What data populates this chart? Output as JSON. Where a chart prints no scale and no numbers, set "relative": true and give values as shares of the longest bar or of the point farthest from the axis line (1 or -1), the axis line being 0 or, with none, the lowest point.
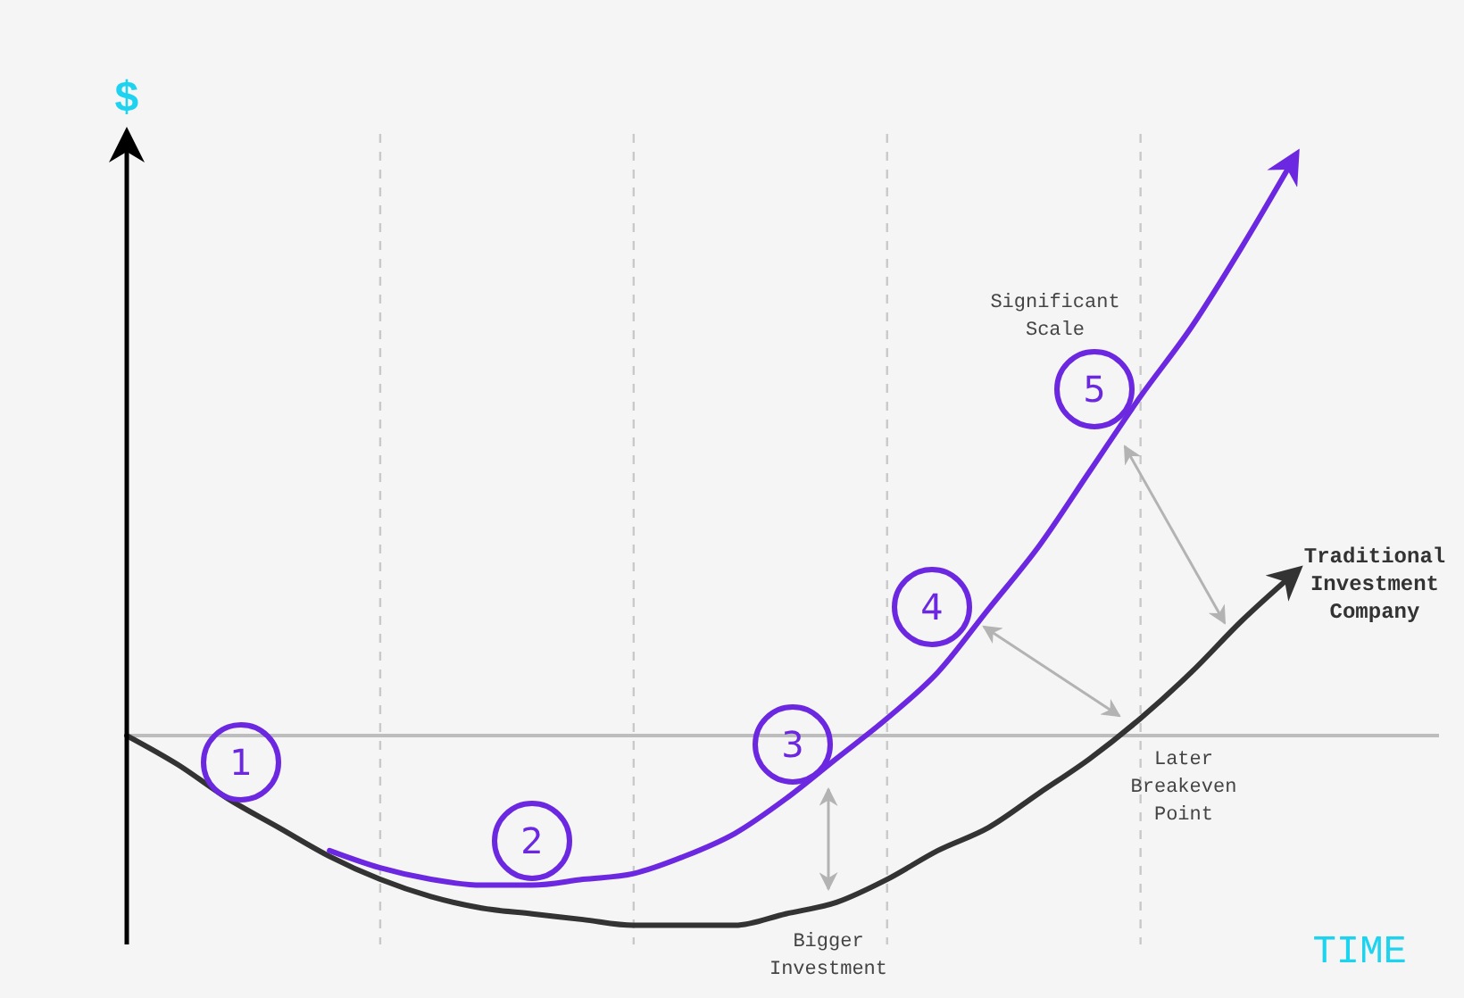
{
  "chart_data": {
    "type": "line",
    "relative": true,
    "xlabel": "TIME",
    "ylabel": "$",
    "categories": [
      null,
      null,
      null,
      null,
      null,
      null,
      null,
      null,
      null,
      null,
      null,
      null,
      null,
      null,
      null,
      null,
      null,
      null,
      null,
      null,
      null,
      null,
      null,
      null
    ],
    "grid": "x",
    "marker": "none",
    "line_style": "solid",
    "series": [
      {
        "name": "Traditional Investment Company",
        "color": "#333333",
        "values": [
          0,
          -0.05,
          -0.11,
          -0.16,
          -0.21,
          -0.25,
          -0.28,
          -0.3,
          -0.31,
          -0.32,
          -0.33,
          -0.33,
          -0.33,
          -0.31,
          -0.29,
          -0.25,
          -0.2,
          -0.16,
          -0.1,
          -0.04,
          0.03,
          0.11,
          0.2,
          0.28
        ]
      },
      {
        "color": "#6b28e0",
        "values": [
          null,
          null,
          null,
          null,
          -0.2,
          -0.23,
          -0.25,
          -0.26,
          -0.26,
          -0.25,
          -0.24,
          -0.21,
          -0.17,
          -0.11,
          -0.04,
          0.03,
          0.11,
          0.22,
          0.33,
          0.46,
          0.59,
          0.71,
          0.85,
          1.0
        ]
      }
    ],
    "annotations": [
      "1",
      "2",
      "3",
      "4",
      "5",
      "Significant Scale",
      "Bigger Investment",
      "Later Breakeven Point"
    ]
  }
}
